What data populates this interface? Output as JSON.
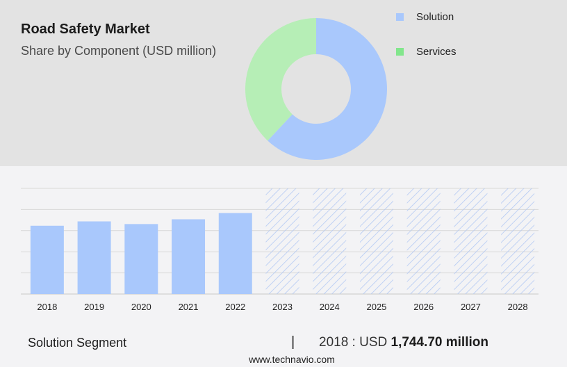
{
  "header": {
    "title": "Road Safety Market",
    "subtitle": "Share by Component (USD million)"
  },
  "legend": [
    {
      "label": "Solution",
      "color": "#a9c8fc"
    },
    {
      "label": "Services",
      "color": "#82e68c"
    }
  ],
  "colors": {
    "donut_solution": "#a9c8fc",
    "donut_services": "#b6eeb6",
    "bar_actual": "#a9c8fc",
    "bar_forecast_hatch": "#b3c9f3"
  },
  "chart_data": [
    {
      "type": "pie",
      "variant": "donut",
      "title": "Share by Component (USD million)",
      "categories": [
        "Solution",
        "Services"
      ],
      "values": [
        62,
        38
      ]
    },
    {
      "type": "bar",
      "categories": [
        "2018",
        "2019",
        "2020",
        "2021",
        "2022",
        "2023",
        "2024",
        "2025",
        "2026",
        "2027",
        "2028"
      ],
      "series": [
        {
          "name": "Solution",
          "values": [
            1744.7,
            1856,
            1788,
            1910,
            2070,
            null,
            null,
            null,
            null,
            null,
            null
          ]
        }
      ],
      "forecast_categories": [
        "2023",
        "2024",
        "2025",
        "2026",
        "2027",
        "2028"
      ],
      "ylim": [
        0,
        2700
      ],
      "grid": true
    }
  ],
  "footer": {
    "segment": "Solution Segment",
    "divider": "|",
    "year_label": "2018 : USD ",
    "value": "1,744.70 million",
    "url": "www.technavio.com"
  }
}
